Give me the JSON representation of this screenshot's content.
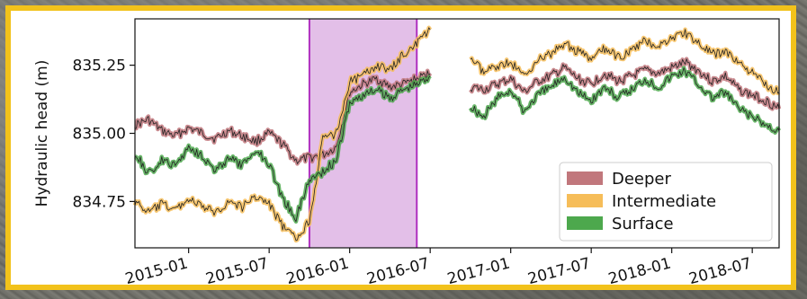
{
  "chart_data": {
    "type": "line",
    "ylabel": "Hydraulic head (m)",
    "xlabel": "",
    "x_ticks": [
      "2015-01",
      "2015-07",
      "2016-01",
      "2016-07",
      "2017-01",
      "2017-07",
      "2018-01",
      "2018-07"
    ],
    "y_ticks": [
      834.75,
      835.0,
      835.25
    ],
    "y_tick_labels": [
      "834.75",
      "835.00",
      "835.25"
    ],
    "ylim": [
      834.58,
      835.42
    ],
    "xlim": [
      "2014-09",
      "2018-09"
    ],
    "grid": false,
    "legend_position": "lower-right",
    "highlight_span": {
      "start": "2015-10",
      "end": "2016-06",
      "color": "#e3bfe8",
      "edge_color": "#b030c0"
    },
    "series": [
      {
        "name": "Deeper",
        "color": "#c1777c",
        "x": [
          "2014-09",
          "2014-10",
          "2014-11",
          "2014-12",
          "2015-01",
          "2015-02",
          "2015-03",
          "2015-04",
          "2015-05",
          "2015-06",
          "2015-07",
          "2015-08",
          "2015-09",
          "2015-10",
          "2015-11",
          "2015-12",
          "2016-01",
          "2016-02",
          "2016-03",
          "2016-04",
          "2016-05",
          "2016-06",
          "2016-07",
          "2016-08",
          "2016-09",
          "2016-10",
          "2016-11",
          "2016-12",
          "2017-01",
          "2017-02",
          "2017-03",
          "2017-04",
          "2017-05",
          "2017-06",
          "2017-07",
          "2017-08",
          "2017-09",
          "2017-10",
          "2017-11",
          "2017-12",
          "2018-01",
          "2018-02",
          "2018-03",
          "2018-04",
          "2018-05",
          "2018-06",
          "2018-07",
          "2018-08",
          "2018-09"
        ],
        "y": [
          835.03,
          835.05,
          835.01,
          834.99,
          835.02,
          835.0,
          834.98,
          835.01,
          834.99,
          834.97,
          835.0,
          834.96,
          834.9,
          834.91,
          834.92,
          834.95,
          835.15,
          835.18,
          835.2,
          835.17,
          835.18,
          835.2,
          835.22,
          null,
          null,
          835.17,
          835.16,
          835.18,
          835.2,
          835.15,
          835.19,
          835.21,
          835.24,
          835.2,
          835.18,
          835.22,
          835.19,
          835.21,
          835.23,
          835.22,
          835.24,
          835.26,
          835.23,
          835.19,
          835.21,
          835.16,
          835.14,
          835.12,
          835.09
        ]
      },
      {
        "name": "Intermediate",
        "color": "#f6bd59",
        "x": [
          "2014-09",
          "2014-10",
          "2014-11",
          "2014-12",
          "2015-01",
          "2015-02",
          "2015-03",
          "2015-04",
          "2015-05",
          "2015-06",
          "2015-07",
          "2015-08",
          "2015-09",
          "2015-10",
          "2015-11",
          "2015-12",
          "2016-01",
          "2016-02",
          "2016-03",
          "2016-04",
          "2016-05",
          "2016-06",
          "2016-07",
          "2016-08",
          "2016-09",
          "2016-10",
          "2016-11",
          "2016-12",
          "2017-01",
          "2017-02",
          "2017-03",
          "2017-04",
          "2017-05",
          "2017-06",
          "2017-07",
          "2017-08",
          "2017-09",
          "2017-10",
          "2017-11",
          "2017-12",
          "2018-01",
          "2018-02",
          "2018-03",
          "2018-04",
          "2018-05",
          "2018-06",
          "2018-07",
          "2018-08",
          "2018-09"
        ],
        "y": [
          834.75,
          834.71,
          834.74,
          834.72,
          834.76,
          834.73,
          834.71,
          834.75,
          834.73,
          834.77,
          834.74,
          834.66,
          834.61,
          834.68,
          834.98,
          835.0,
          835.19,
          835.21,
          835.25,
          835.23,
          835.29,
          835.33,
          835.38,
          null,
          null,
          835.28,
          835.22,
          835.25,
          835.26,
          835.21,
          835.27,
          835.29,
          835.33,
          835.3,
          835.27,
          835.31,
          835.28,
          835.3,
          835.34,
          835.32,
          835.35,
          835.37,
          835.33,
          835.29,
          835.3,
          835.26,
          835.22,
          835.18,
          835.15
        ]
      },
      {
        "name": "Surface",
        "color": "#4da84d",
        "x": [
          "2014-09",
          "2014-10",
          "2014-11",
          "2014-12",
          "2015-01",
          "2015-02",
          "2015-03",
          "2015-04",
          "2015-05",
          "2015-06",
          "2015-07",
          "2015-08",
          "2015-09",
          "2015-10",
          "2015-11",
          "2015-12",
          "2016-01",
          "2016-02",
          "2016-03",
          "2016-04",
          "2016-05",
          "2016-06",
          "2016-07",
          "2016-08",
          "2016-09",
          "2016-10",
          "2016-11",
          "2016-12",
          "2017-01",
          "2017-02",
          "2017-03",
          "2017-04",
          "2017-05",
          "2017-06",
          "2017-07",
          "2017-08",
          "2017-09",
          "2017-10",
          "2017-11",
          "2017-12",
          "2018-01",
          "2018-02",
          "2018-03",
          "2018-04",
          "2018-05",
          "2018-06",
          "2018-07",
          "2018-08",
          "2018-09"
        ],
        "y": [
          834.93,
          834.85,
          834.9,
          834.88,
          834.95,
          834.92,
          834.86,
          834.91,
          834.88,
          834.94,
          834.89,
          834.76,
          834.69,
          834.83,
          834.86,
          834.9,
          835.11,
          835.14,
          835.16,
          835.13,
          835.16,
          835.18,
          835.21,
          null,
          null,
          835.1,
          835.06,
          835.13,
          835.16,
          835.08,
          835.14,
          835.17,
          835.21,
          835.15,
          835.12,
          835.17,
          835.13,
          835.16,
          835.2,
          835.17,
          835.21,
          835.23,
          835.18,
          835.13,
          835.15,
          835.09,
          835.06,
          835.03,
          835.01
        ]
      }
    ]
  }
}
